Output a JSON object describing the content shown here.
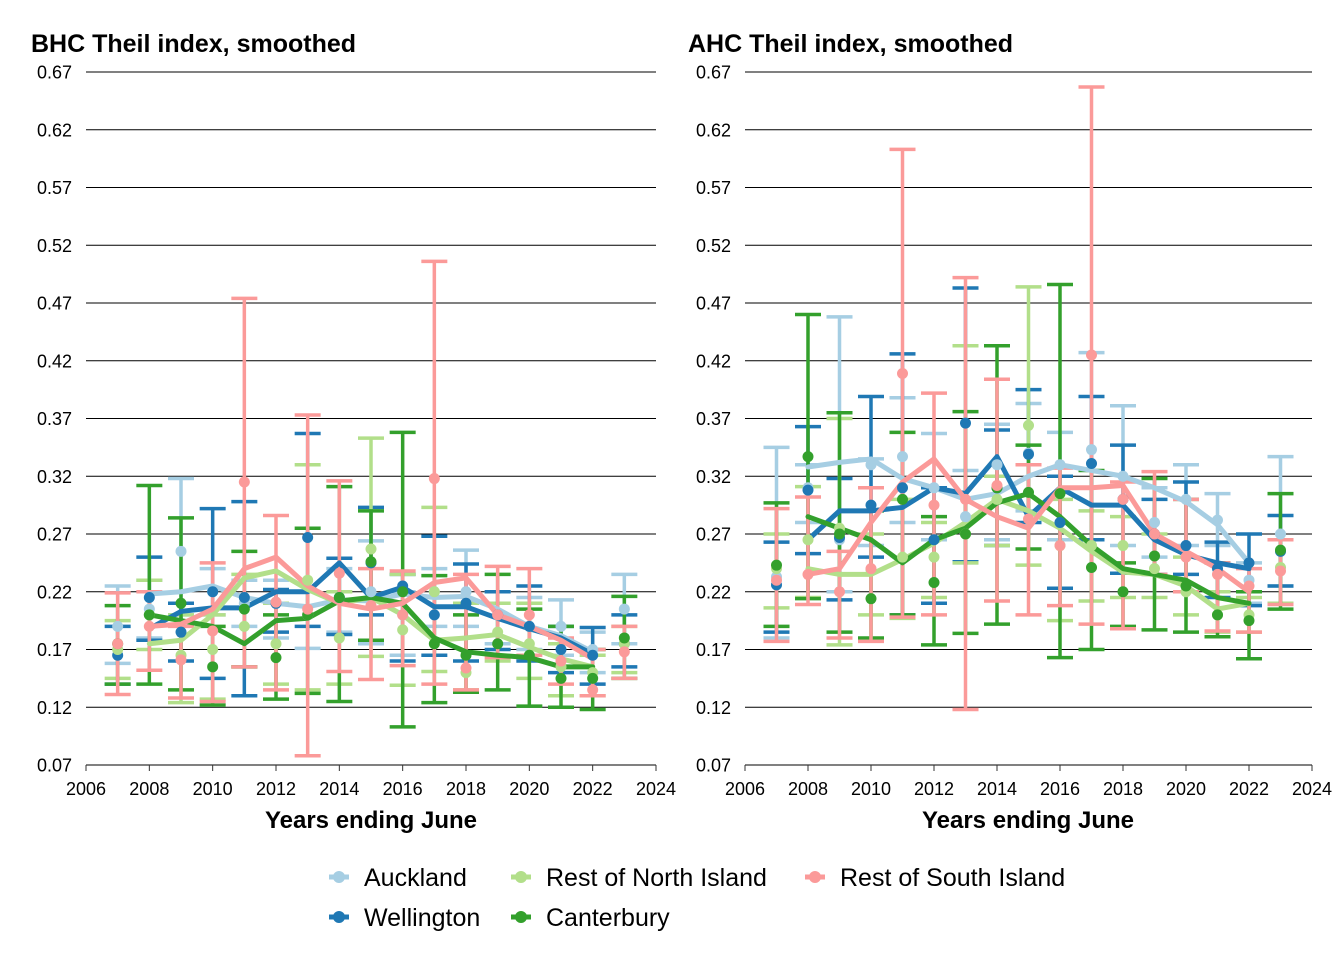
{
  "chart_data": [
    {
      "type": "line",
      "title": "BHC Theil index, smoothed",
      "xlabel": "Years ending June",
      "xlim": [
        2006,
        2024
      ],
      "ylim": [
        0.07,
        0.67
      ],
      "x_ticks": [
        2006,
        2008,
        2010,
        2012,
        2014,
        2016,
        2018,
        2020,
        2022,
        2024
      ],
      "y_ticks": [
        0.07,
        0.12,
        0.17,
        0.22,
        0.27,
        0.32,
        0.37,
        0.42,
        0.47,
        0.52,
        0.57,
        0.62,
        0.67
      ],
      "grid": "horizontal",
      "legend": "bottom",
      "x": [
        2007,
        2008,
        2009,
        2010,
        2011,
        2012,
        2013,
        2014,
        2015,
        2016,
        2017,
        2018,
        2019,
        2020,
        2021,
        2022,
        2023
      ],
      "smoothed_x": [
        2008,
        2009,
        2010,
        2011,
        2012,
        2013,
        2014,
        2015,
        2016,
        2017,
        2018,
        2019,
        2020,
        2021,
        2022
      ],
      "series": [
        {
          "name": "Auckland",
          "color": "#a6cee3",
          "point": [
            0.19,
            0.205,
            0.255,
            0.22,
            0.21,
            0.21,
            0.2,
            0.215,
            0.22,
            0.2,
            0.22,
            0.22,
            0.2,
            0.19,
            0.19,
            0.17,
            0.205
          ],
          "lower": [
            0.158,
            0.18,
            0.2,
            0.2,
            0.19,
            0.18,
            0.171,
            0.185,
            0.175,
            0.165,
            0.19,
            0.19,
            0.175,
            0.17,
            0.165,
            0.15,
            0.175
          ],
          "upper": [
            0.225,
            0.23,
            0.318,
            0.24,
            0.23,
            0.23,
            0.22,
            0.24,
            0.264,
            0.22,
            0.24,
            0.256,
            0.22,
            0.215,
            0.213,
            0.185,
            0.235
          ],
          "smoothed": [
            0.218,
            0.22,
            0.225,
            0.215,
            0.21,
            0.207,
            0.213,
            0.212,
            0.218,
            0.215,
            0.216,
            0.205,
            0.19,
            0.182,
            0.168
          ]
        },
        {
          "name": "Wellington",
          "color": "#1f78b4",
          "point": [
            0.165,
            0.215,
            0.185,
            0.22,
            0.215,
            0.21,
            0.267,
            0.215,
            0.245,
            0.225,
            0.2,
            0.21,
            0.2,
            0.19,
            0.17,
            0.165,
            0.175
          ],
          "lower": [
            0.14,
            0.178,
            0.16,
            0.145,
            0.13,
            0.185,
            0.19,
            0.183,
            0.2,
            0.16,
            0.165,
            0.16,
            0.17,
            0.16,
            0.15,
            0.14,
            0.155
          ],
          "upper": [
            0.19,
            0.25,
            0.21,
            0.292,
            0.298,
            0.222,
            0.357,
            0.249,
            0.293,
            0.235,
            0.268,
            0.244,
            0.22,
            0.225,
            0.19,
            0.189,
            0.2
          ],
          "smoothed": [
            0.188,
            0.203,
            0.206,
            0.206,
            0.22,
            0.22,
            0.245,
            0.215,
            0.224,
            0.207,
            0.207,
            0.197,
            0.188,
            0.18,
            0.166
          ]
        },
        {
          "name": "Rest of North Island",
          "color": "#b2df8a",
          "point": [
            0.17,
            0.2,
            0.165,
            0.17,
            0.19,
            0.175,
            0.23,
            0.18,
            0.257,
            0.187,
            0.22,
            0.15,
            0.185,
            0.175,
            0.155,
            0.15,
            0.175
          ],
          "lower": [
            0.145,
            0.17,
            0.124,
            0.127,
            0.155,
            0.14,
            0.135,
            0.14,
            0.164,
            0.139,
            0.151,
            0.135,
            0.16,
            0.145,
            0.13,
            0.13,
            0.15
          ],
          "upper": [
            0.195,
            0.23,
            0.2,
            0.2,
            0.235,
            0.21,
            0.33,
            0.22,
            0.353,
            0.235,
            0.293,
            0.21,
            0.21,
            0.21,
            0.175,
            0.165,
            0.19
          ],
          "smoothed": [
            0.175,
            0.178,
            0.2,
            0.232,
            0.238,
            0.222,
            0.21,
            0.215,
            0.2,
            0.178,
            0.18,
            0.183,
            0.172,
            0.162,
            0.155
          ]
        },
        {
          "name": "Canterbury",
          "color": "#33a02c",
          "point": [
            0.175,
            0.2,
            0.21,
            0.155,
            0.205,
            0.163,
            0.2,
            0.215,
            0.246,
            0.22,
            0.175,
            0.165,
            0.175,
            0.165,
            0.145,
            0.145,
            0.18
          ],
          "lower": [
            0.14,
            0.14,
            0.135,
            0.122,
            0.155,
            0.127,
            0.132,
            0.125,
            0.178,
            0.103,
            0.124,
            0.133,
            0.135,
            0.121,
            0.12,
            0.118,
            0.145
          ],
          "upper": [
            0.208,
            0.312,
            0.284,
            0.19,
            0.255,
            0.2,
            0.275,
            0.311,
            0.29,
            0.358,
            0.234,
            0.2,
            0.235,
            0.205,
            0.19,
            0.17,
            0.216
          ],
          "smoothed": [
            0.2,
            0.195,
            0.19,
            0.175,
            0.195,
            0.197,
            0.212,
            0.215,
            0.21,
            0.18,
            0.168,
            0.165,
            0.163,
            0.155,
            0.155
          ]
        },
        {
          "name": "Rest of South Island",
          "color": "#fb9a99",
          "point": [
            0.175,
            0.19,
            0.161,
            0.186,
            0.315,
            0.211,
            0.205,
            0.236,
            0.208,
            0.2,
            0.318,
            0.154,
            0.2,
            0.2,
            0.16,
            0.135,
            0.168
          ],
          "lower": [
            0.131,
            0.152,
            0.128,
            0.125,
            0.155,
            0.135,
            0.078,
            0.151,
            0.144,
            0.156,
            0.14,
            0.135,
            0.163,
            0.165,
            0.14,
            0.13,
            0.145
          ],
          "upper": [
            0.219,
            0.22,
            0.19,
            0.245,
            0.474,
            0.286,
            0.373,
            0.316,
            0.24,
            0.238,
            0.506,
            0.235,
            0.242,
            0.24,
            0.18,
            0.17,
            0.19
          ],
          "smoothed": [
            0.19,
            0.192,
            0.205,
            0.24,
            0.25,
            0.225,
            0.21,
            0.205,
            0.21,
            0.228,
            0.232,
            0.2,
            0.19,
            0.178,
            0.162
          ]
        }
      ]
    },
    {
      "type": "line",
      "title": "AHC Theil index, smoothed",
      "xlabel": "Years ending June",
      "xlim": [
        2006,
        2024
      ],
      "ylim": [
        0.07,
        0.67
      ],
      "x_ticks": [
        2006,
        2008,
        2010,
        2012,
        2014,
        2016,
        2018,
        2020,
        2022,
        2024
      ],
      "y_ticks": [
        0.07,
        0.12,
        0.17,
        0.22,
        0.27,
        0.32,
        0.37,
        0.42,
        0.47,
        0.52,
        0.57,
        0.62,
        0.67
      ],
      "grid": "horizontal",
      "legend": "bottom",
      "x": [
        2007,
        2008,
        2009,
        2010,
        2011,
        2012,
        2013,
        2014,
        2015,
        2016,
        2017,
        2018,
        2019,
        2020,
        2021,
        2022,
        2023
      ],
      "smoothed_x": [
        2008,
        2009,
        2010,
        2011,
        2012,
        2013,
        2014,
        2015,
        2016,
        2017,
        2018,
        2019,
        2020,
        2021,
        2022
      ],
      "series": [
        {
          "name": "Auckland",
          "color": "#a6cee3",
          "point": [
            0.233,
            0.31,
            0.265,
            0.33,
            0.337,
            0.31,
            0.285,
            0.33,
            0.34,
            0.33,
            0.343,
            0.32,
            0.28,
            0.3,
            0.282,
            0.23,
            0.27
          ],
          "lower": [
            0.18,
            0.28,
            0.22,
            0.26,
            0.28,
            0.265,
            0.245,
            0.265,
            0.29,
            0.265,
            0.265,
            0.26,
            0.25,
            0.26,
            0.26,
            0.21,
            0.225
          ],
          "upper": [
            0.345,
            0.33,
            0.458,
            0.335,
            0.388,
            0.357,
            0.325,
            0.365,
            0.383,
            0.358,
            0.427,
            0.381,
            0.31,
            0.33,
            0.305,
            0.245,
            0.337
          ],
          "smoothed": [
            0.328,
            0.332,
            0.335,
            0.318,
            0.31,
            0.3,
            0.305,
            0.32,
            0.33,
            0.325,
            0.32,
            0.31,
            0.298,
            0.278,
            0.245
          ]
        },
        {
          "name": "Wellington",
          "color": "#1f78b4",
          "point": [
            0.226,
            0.308,
            0.267,
            0.295,
            0.31,
            0.265,
            0.366,
            0.31,
            0.339,
            0.28,
            0.331,
            0.3,
            0.27,
            0.26,
            0.24,
            0.245,
            0.255
          ],
          "lower": [
            0.185,
            0.253,
            0.213,
            0.25,
            0.2,
            0.21,
            0.246,
            0.26,
            0.28,
            0.223,
            0.265,
            0.236,
            0.235,
            0.235,
            0.215,
            0.208,
            0.225
          ],
          "upper": [
            0.263,
            0.363,
            0.318,
            0.389,
            0.426,
            0.31,
            0.483,
            0.36,
            0.395,
            0.32,
            0.389,
            0.347,
            0.3,
            0.315,
            0.263,
            0.27,
            0.286
          ],
          "smoothed": [
            0.265,
            0.29,
            0.29,
            0.293,
            0.31,
            0.305,
            0.337,
            0.285,
            0.31,
            0.295,
            0.295,
            0.265,
            0.252,
            0.245,
            0.24
          ]
        },
        {
          "name": "Rest of North Island",
          "color": "#b2df8a",
          "point": [
            0.24,
            0.265,
            0.275,
            0.239,
            0.25,
            0.25,
            0.27,
            0.3,
            0.364,
            0.26,
            0.26,
            0.26,
            0.24,
            0.22,
            0.2,
            0.2,
            0.241
          ],
          "lower": [
            0.206,
            0.215,
            0.174,
            0.2,
            0.197,
            0.215,
            0.245,
            0.26,
            0.243,
            0.195,
            0.212,
            0.215,
            0.215,
            0.2,
            0.185,
            0.185,
            0.21
          ],
          "upper": [
            0.27,
            0.311,
            0.37,
            0.27,
            0.3,
            0.28,
            0.433,
            0.32,
            0.484,
            0.3,
            0.29,
            0.285,
            0.27,
            0.25,
            0.22,
            0.215,
            0.265
          ],
          "smoothed": [
            0.24,
            0.235,
            0.235,
            0.248,
            0.262,
            0.28,
            0.3,
            0.29,
            0.275,
            0.255,
            0.237,
            0.235,
            0.225,
            0.205,
            0.21
          ]
        },
        {
          "name": "Canterbury",
          "color": "#33a02c",
          "point": [
            0.243,
            0.337,
            0.27,
            0.214,
            0.3,
            0.228,
            0.27,
            0.31,
            0.306,
            0.305,
            0.241,
            0.22,
            0.251,
            0.225,
            0.2,
            0.195,
            0.256
          ],
          "lower": [
            0.19,
            0.214,
            0.185,
            0.18,
            0.2,
            0.174,
            0.184,
            0.192,
            0.257,
            0.163,
            0.17,
            0.19,
            0.187,
            0.185,
            0.181,
            0.162,
            0.205
          ],
          "upper": [
            0.297,
            0.46,
            0.375,
            0.29,
            0.358,
            0.285,
            0.376,
            0.433,
            0.347,
            0.486,
            0.325,
            0.245,
            0.318,
            0.3,
            0.245,
            0.22,
            0.305
          ],
          "smoothed": [
            0.285,
            0.275,
            0.265,
            0.245,
            0.265,
            0.275,
            0.297,
            0.305,
            0.285,
            0.26,
            0.24,
            0.235,
            0.23,
            0.215,
            0.21
          ]
        },
        {
          "name": "Rest of South Island",
          "color": "#fb9a99",
          "point": [
            0.23,
            0.235,
            0.22,
            0.24,
            0.409,
            0.295,
            0.3,
            0.312,
            0.283,
            0.26,
            0.425,
            0.3,
            0.27,
            0.25,
            0.235,
            0.225,
            0.238
          ],
          "lower": [
            0.177,
            0.209,
            0.18,
            0.177,
            0.198,
            0.2,
            0.118,
            0.212,
            0.2,
            0.208,
            0.192,
            0.188,
            0.235,
            0.22,
            0.186,
            0.185,
            0.209
          ],
          "upper": [
            0.292,
            0.302,
            0.255,
            0.31,
            0.603,
            0.392,
            0.492,
            0.404,
            0.33,
            0.327,
            0.657,
            0.315,
            0.324,
            0.3,
            0.245,
            0.24,
            0.265
          ],
          "smoothed": [
            0.235,
            0.24,
            0.28,
            0.315,
            0.335,
            0.3,
            0.285,
            0.275,
            0.31,
            0.31,
            0.312,
            0.27,
            0.255,
            0.24,
            0.22
          ]
        }
      ]
    }
  ]
}
